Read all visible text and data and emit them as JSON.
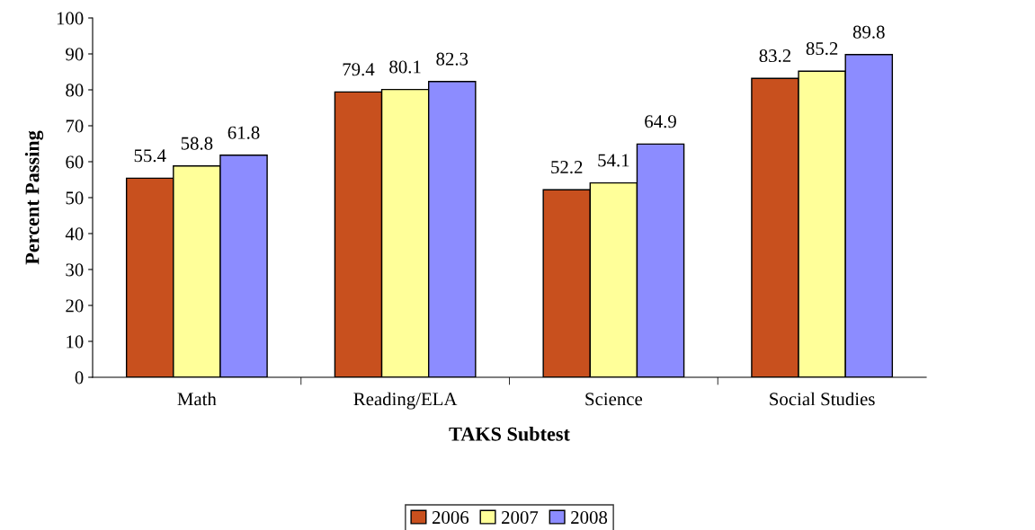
{
  "chart_data": {
    "type": "bar",
    "xlabel": "TAKS Subtest",
    "ylabel": "Percent Passing",
    "categories": [
      "Math",
      "Reading/ELA",
      "Science",
      "Social Studies"
    ],
    "series": [
      {
        "name": "2006",
        "color": "#c8501e",
        "values": [
          55.4,
          79.4,
          52.2,
          83.2
        ]
      },
      {
        "name": "2007",
        "color": "#ffff99",
        "values": [
          58.8,
          80.1,
          54.1,
          85.2
        ]
      },
      {
        "name": "2008",
        "color": "#8c8cff",
        "values": [
          61.8,
          82.3,
          64.9,
          89.8
        ]
      }
    ],
    "ylim": [
      0,
      100
    ],
    "yticks": [
      0,
      10,
      20,
      30,
      40,
      50,
      60,
      70,
      80,
      90,
      100
    ],
    "data_labels": true,
    "grid": false,
    "legend": "bottom"
  }
}
